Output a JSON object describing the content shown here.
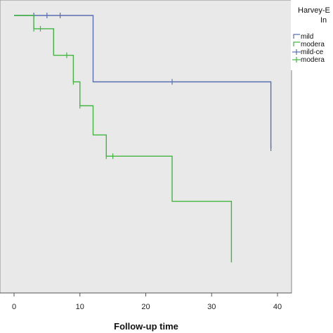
{
  "chart_data": {
    "type": "line",
    "subtype": "kaplan-meier step",
    "xlabel": "Follow-up time",
    "ylabel": "",
    "xlim": [
      0,
      40
    ],
    "ylim": [
      0,
      1.0
    ],
    "x_ticks": [
      0,
      10,
      20,
      30,
      40
    ],
    "x_tick_labels": [
      "0",
      "10",
      "20",
      "30",
      "40"
    ],
    "grid": false,
    "plot_background": "#e9e9e9",
    "legend": {
      "placement": "top-right",
      "title": [
        "Harvey-E",
        "In"
      ],
      "entries": [
        {
          "label": "mild",
          "marker": "step",
          "color": "#5b6fb0"
        },
        {
          "label": "modera",
          "marker": "step",
          "color": "#43b543"
        },
        {
          "label": "mild-ce",
          "marker": "censor",
          "color": "#5b6fb0"
        },
        {
          "label": "modera",
          "marker": "censor",
          "color": "#43b543"
        }
      ]
    },
    "series": [
      {
        "name": "mild",
        "color": "#5b6fb0",
        "steps": [
          [
            0,
            1.0
          ],
          [
            12,
            1.0
          ],
          [
            12,
            0.75
          ],
          [
            39,
            0.75
          ],
          [
            39,
            0.5
          ]
        ],
        "censored": [
          [
            3,
            1.0
          ],
          [
            5,
            1.0
          ],
          [
            7,
            1.0
          ],
          [
            24,
            0.75
          ],
          [
            39,
            0.5
          ]
        ]
      },
      {
        "name": "modera",
        "color": "#43b543",
        "steps": [
          [
            0,
            1.0
          ],
          [
            3,
            1.0
          ],
          [
            3,
            0.95
          ],
          [
            6,
            0.95
          ],
          [
            6,
            0.85
          ],
          [
            9,
            0.85
          ],
          [
            9,
            0.75
          ],
          [
            10,
            0.75
          ],
          [
            10,
            0.66
          ],
          [
            12,
            0.66
          ],
          [
            12,
            0.55
          ],
          [
            14,
            0.55
          ],
          [
            14,
            0.47
          ],
          [
            24,
            0.47
          ],
          [
            24,
            0.3
          ],
          [
            33,
            0.3
          ],
          [
            33,
            0.07
          ]
        ],
        "censored": [
          [
            3,
            0.95
          ],
          [
            4,
            0.95
          ],
          [
            8,
            0.85
          ],
          [
            9,
            0.75
          ],
          [
            10,
            0.66
          ],
          [
            14,
            0.47
          ],
          [
            15,
            0.47
          ]
        ]
      }
    ]
  }
}
